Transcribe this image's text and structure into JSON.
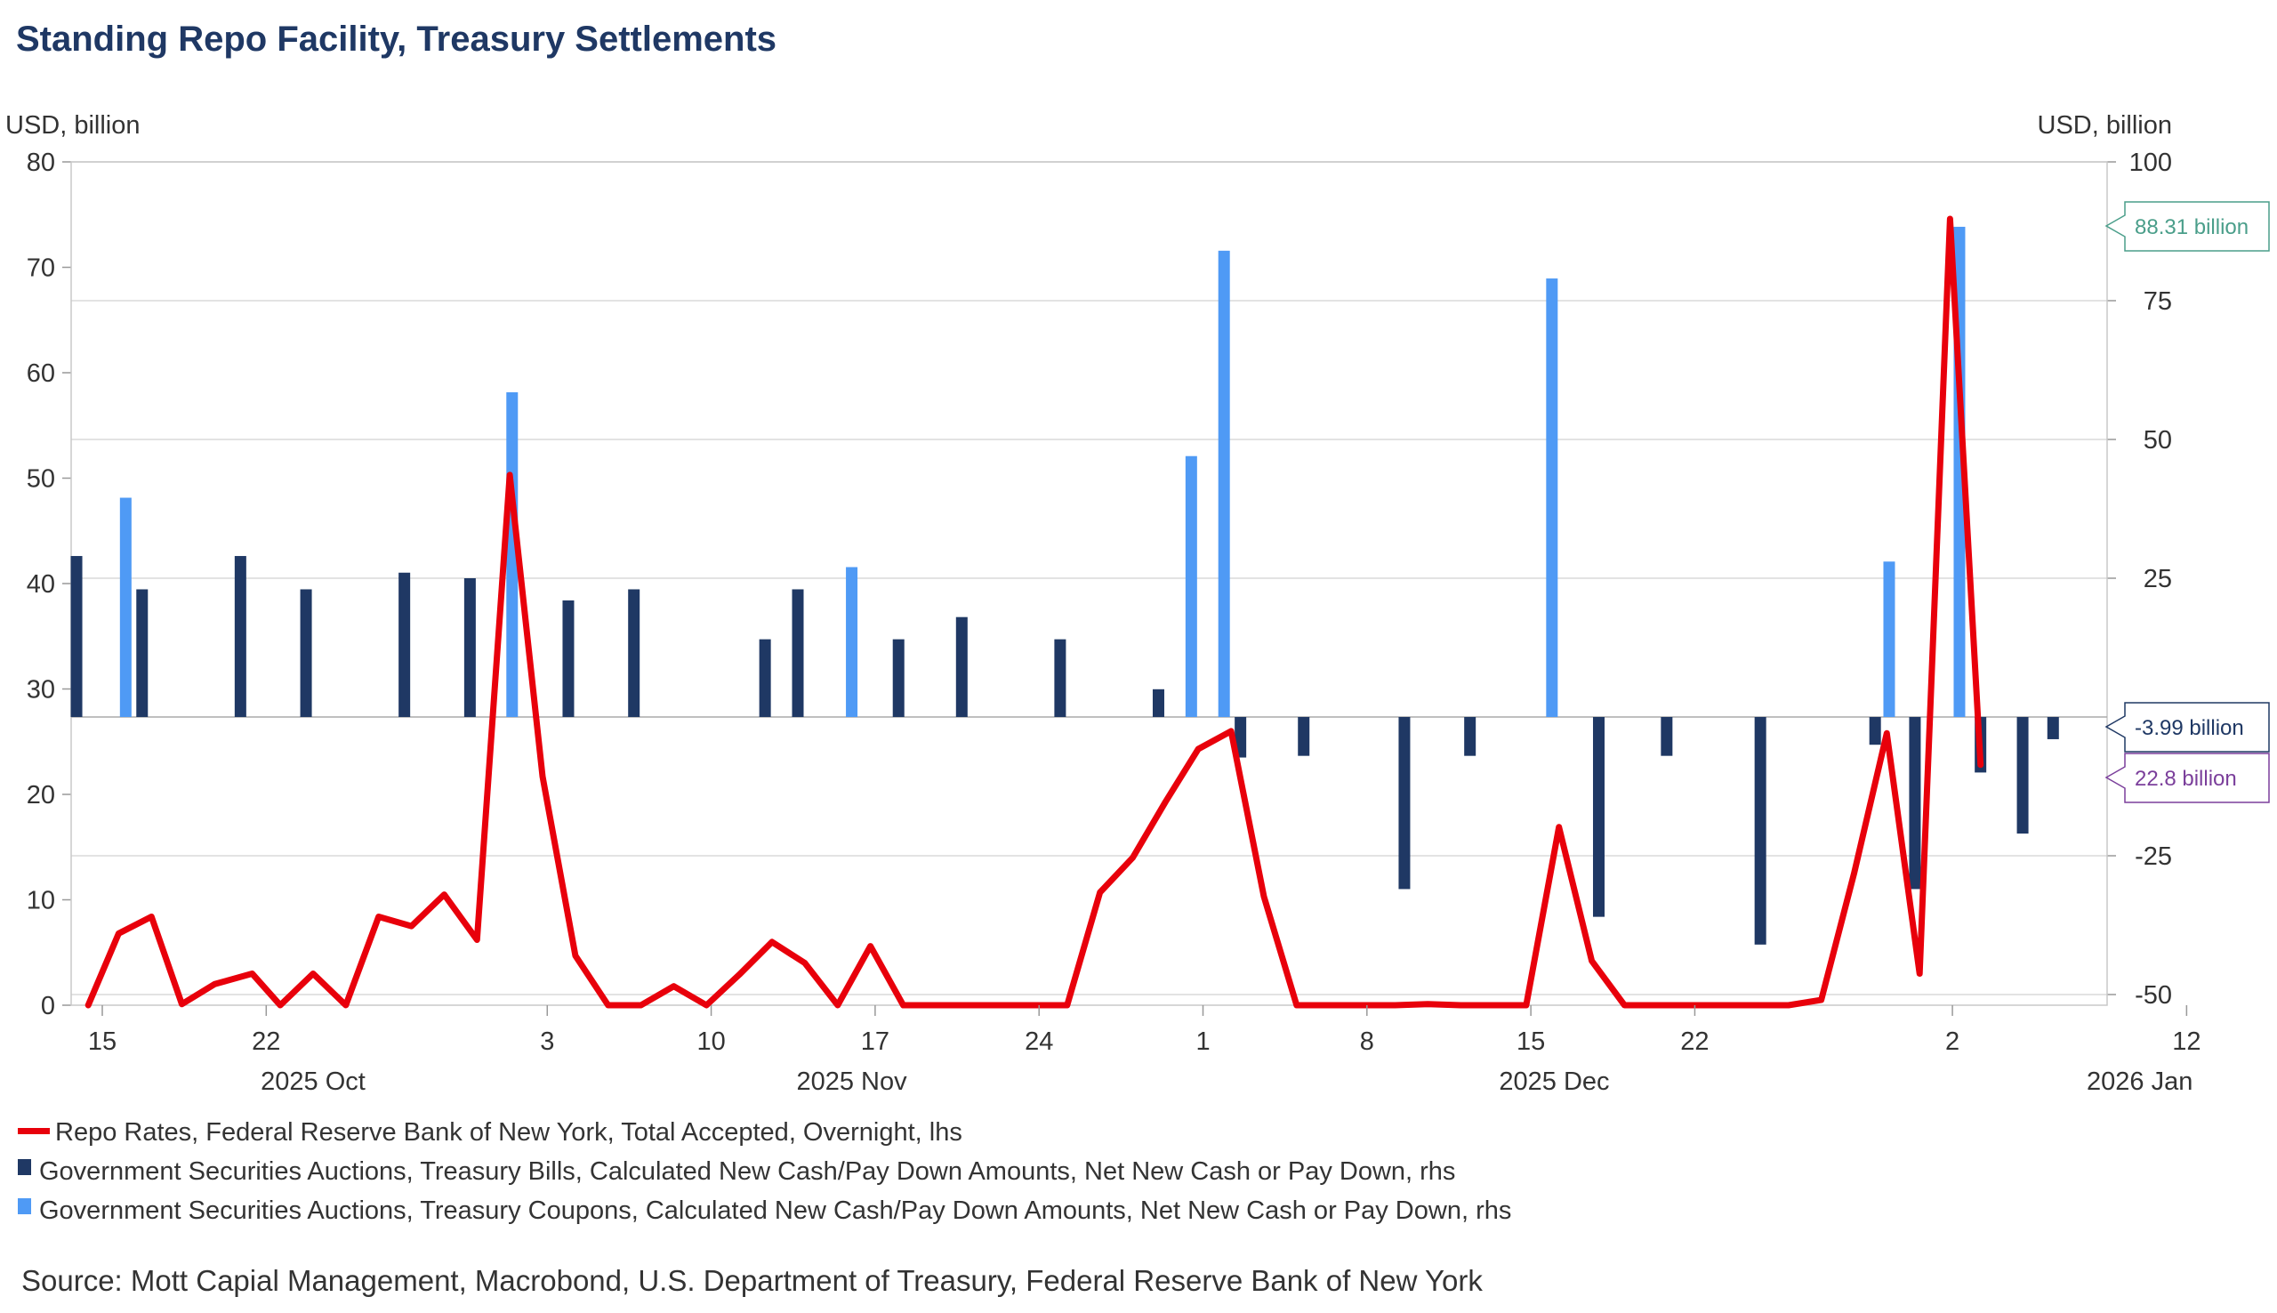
{
  "chart_data": {
    "type": "bar+line",
    "title": "Standing Repo Facility, Treasury Settlements",
    "left_axis": {
      "unit_label": "USD, billion",
      "range": [
        0,
        80
      ],
      "ticks": [
        "0",
        "10",
        "20",
        "30",
        "40",
        "50",
        "60",
        "70",
        "80"
      ]
    },
    "right_axis": {
      "unit_label": "USD, billion",
      "range": [
        -52,
        100
      ],
      "ticks": [
        "-50",
        "-25",
        "25",
        "50",
        "75",
        "100"
      ],
      "zero_label": "-3.99 billion"
    },
    "x_ticks": [
      {
        "label": "15",
        "day": 0
      },
      {
        "label": "22",
        "day": 7
      },
      {
        "label": "3",
        "day": 19
      },
      {
        "label": "10",
        "day": 26
      },
      {
        "label": "17",
        "day": 33
      },
      {
        "label": "24",
        "day": 40
      },
      {
        "label": "1",
        "day": 47
      },
      {
        "label": "8",
        "day": 54
      },
      {
        "label": "15",
        "day": 61
      },
      {
        "label": "22",
        "day": 68
      },
      {
        "label": "2",
        "day": 79
      },
      {
        "label": "12",
        "day": 89
      }
    ],
    "month_labels": [
      {
        "label": "2025 Oct",
        "day": 9
      },
      {
        "label": "2025 Nov",
        "day": 32
      },
      {
        "label": "2025 Dec",
        "day": 62
      },
      {
        "label": "2026 Jan",
        "day": 87
      }
    ],
    "series": [
      {
        "name": "Repo Rates, Federal Reserve Bank of New York, Total Accepted, Overnight, lhs",
        "type": "line",
        "axis": "left",
        "color": "#e8000b",
        "points": [
          [
            -0.6,
            0.0
          ],
          [
            0.7,
            6.8
          ],
          [
            2.1,
            8.4
          ],
          [
            3.4,
            0.1
          ],
          [
            4.8,
            2.0
          ],
          [
            6.4,
            3.0
          ],
          [
            7.6,
            0.0
          ],
          [
            9.0,
            3.0
          ],
          [
            10.4,
            0.0
          ],
          [
            11.8,
            8.4
          ],
          [
            13.2,
            7.5
          ],
          [
            14.6,
            10.5
          ],
          [
            16.0,
            6.2
          ],
          [
            17.4,
            50.3
          ],
          [
            18.8,
            21.7
          ],
          [
            20.2,
            4.7
          ],
          [
            21.6,
            0.0
          ],
          [
            23.0,
            0.0
          ],
          [
            24.4,
            1.8
          ],
          [
            25.8,
            0.0
          ],
          [
            27.2,
            2.9
          ],
          [
            28.6,
            6.0
          ],
          [
            30.0,
            4.0
          ],
          [
            31.4,
            0.0
          ],
          [
            32.8,
            5.6
          ],
          [
            34.2,
            0.0
          ],
          [
            35.6,
            0.0
          ],
          [
            37.0,
            0.0
          ],
          [
            38.4,
            0.0
          ],
          [
            39.8,
            0.0
          ],
          [
            41.2,
            0.0
          ],
          [
            42.6,
            10.7
          ],
          [
            44.0,
            14.0
          ],
          [
            45.4,
            19.3
          ],
          [
            46.8,
            24.3
          ],
          [
            48.2,
            26.0
          ],
          [
            49.6,
            10.3
          ],
          [
            51.0,
            0.0
          ],
          [
            52.4,
            0.0
          ],
          [
            53.8,
            0.0
          ],
          [
            55.2,
            0.0
          ],
          [
            56.6,
            0.1
          ],
          [
            58.0,
            0.0
          ],
          [
            59.4,
            0.0
          ],
          [
            60.8,
            0.0
          ],
          [
            62.2,
            16.9
          ],
          [
            63.6,
            4.2
          ],
          [
            65.0,
            0.0
          ],
          [
            66.4,
            0.0
          ],
          [
            67.8,
            0.0
          ],
          [
            69.2,
            0.0
          ],
          [
            70.6,
            0.0
          ],
          [
            72.0,
            0.0
          ],
          [
            73.4,
            0.5
          ],
          [
            74.8,
            12.5
          ],
          [
            76.2,
            25.8
          ],
          [
            77.6,
            3.0
          ],
          [
            78.9,
            74.6
          ],
          [
            80.2,
            22.8
          ]
        ]
      },
      {
        "name": "Government Securities Auctions, Treasury Bills, Calculated New Cash/Pay Down Amounts, Net New Cash or Pay Down, rhs",
        "type": "bar",
        "axis": "right",
        "color": "#1f3864",
        "points": [
          [
            -1.1,
            29.0
          ],
          [
            1.7,
            23.0
          ],
          [
            5.9,
            29.0
          ],
          [
            8.7,
            23.0
          ],
          [
            12.9,
            26.0
          ],
          [
            15.7,
            25.0
          ],
          [
            19.9,
            21.0
          ],
          [
            22.7,
            23.0
          ],
          [
            28.3,
            14.0
          ],
          [
            29.7,
            23.0
          ],
          [
            34.0,
            14.0
          ],
          [
            36.7,
            18.0
          ],
          [
            40.9,
            14.0
          ],
          [
            45.1,
            5.0
          ],
          [
            48.6,
            -7.3
          ],
          [
            51.3,
            -7.0
          ],
          [
            55.6,
            -31.0
          ],
          [
            58.4,
            -7.0
          ],
          [
            63.9,
            -36.0
          ],
          [
            66.8,
            -7.0
          ],
          [
            70.8,
            -41.0
          ],
          [
            75.7,
            -5.0
          ],
          [
            77.4,
            -31.0
          ],
          [
            80.2,
            -10.0
          ],
          [
            82.0,
            -21.0
          ],
          [
            83.3,
            -4.0
          ]
        ]
      },
      {
        "name": "Government Securities Auctions, Treasury Coupons, Calculated New Cash/Pay Down Amounts, Net New Cash or Pay Down, rhs",
        "type": "bar",
        "axis": "right",
        "color": "#4f9af5",
        "points": [
          [
            1.0,
            39.5
          ],
          [
            17.5,
            58.5
          ],
          [
            32.0,
            27.0
          ],
          [
            46.5,
            47.0
          ],
          [
            47.9,
            84.0
          ],
          [
            61.9,
            79.0
          ],
          [
            76.3,
            28.0
          ],
          [
            79.3,
            88.31
          ]
        ]
      }
    ],
    "callouts": [
      {
        "text": "88.31 billion",
        "color": "#4a9e8a"
      },
      {
        "text": "-3.99 billion",
        "color": "#1f3864"
      },
      {
        "text": "22.8 billion",
        "color": "#7b3f9b"
      }
    ],
    "source": "Source: Mott Capial Management, Macrobond, U.S. Department of Treasury, Federal Reserve Bank of New York"
  }
}
